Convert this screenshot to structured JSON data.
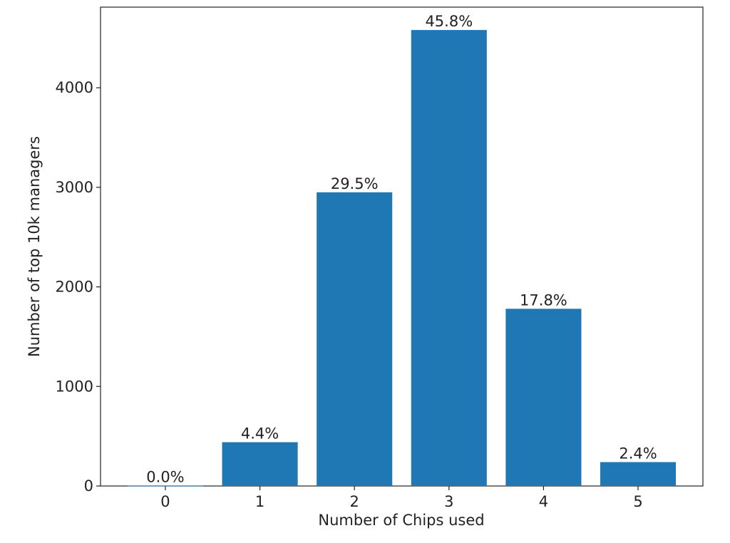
{
  "chart_data": {
    "type": "bar",
    "x_label": "Number of Chips used",
    "y_label": "Number of top 10k managers",
    "categories": [
      "0",
      "1",
      "2",
      "3",
      "4",
      "5"
    ],
    "values": [
      4,
      440,
      2950,
      4580,
      1780,
      240
    ],
    "value_labels": [
      "0.0%",
      "4.4%",
      "29.5%",
      "45.8%",
      "17.8%",
      "2.4%"
    ],
    "color": "#1f77b4",
    "ylim": [
      0,
      4810
    ],
    "yticks": [
      0,
      1000,
      2000,
      3000,
      4000
    ],
    "grid": false
  }
}
